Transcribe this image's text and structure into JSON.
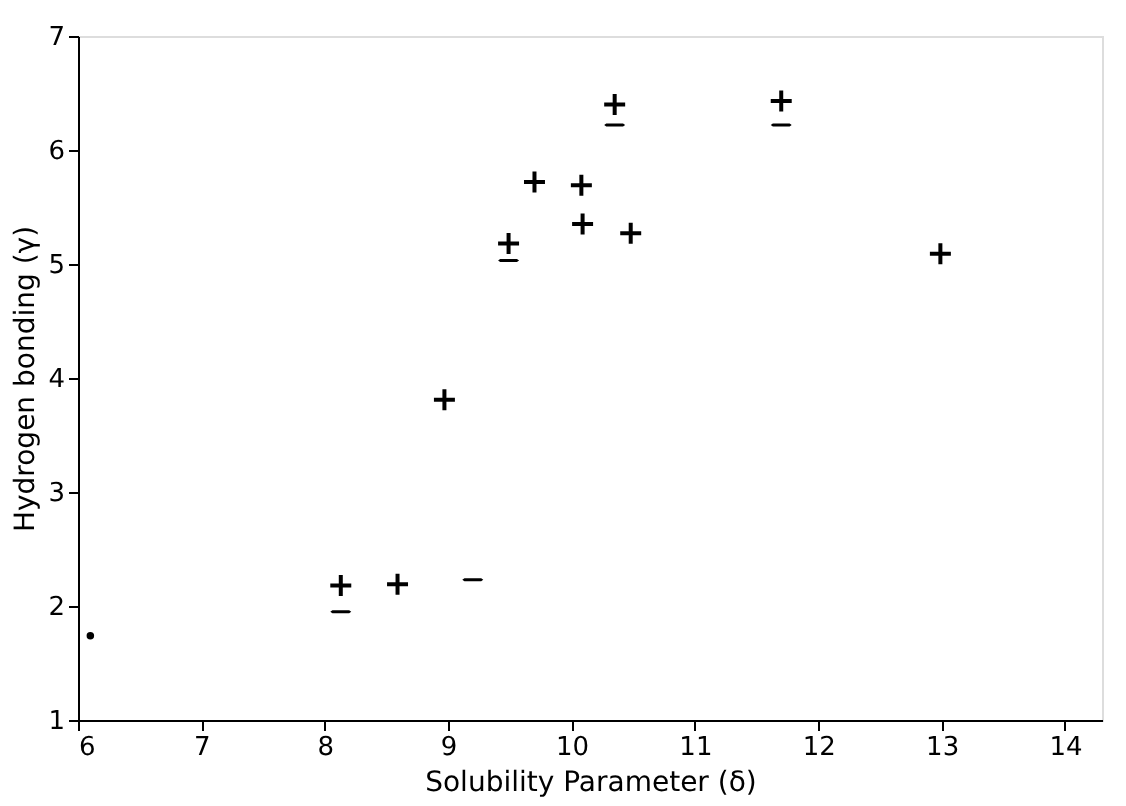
{
  "chart_data": {
    "type": "scatter",
    "xlabel": "Solubility Parameter (δ)",
    "ylabel": "Hydrogen bonding (γ)",
    "xlim": [
      6,
      14.3
    ],
    "ylim": [
      1,
      7
    ],
    "xticks": [
      6,
      7,
      8,
      9,
      10,
      11,
      12,
      13,
      14
    ],
    "yticks": [
      1,
      2,
      3,
      4,
      5,
      6,
      7
    ],
    "grid": false,
    "series": [
      {
        "color": "#000000",
        "marker": "cross",
        "x": [
          8.13,
          8.59,
          8.97,
          9.49,
          9.7,
          10.08,
          10.09,
          10.48,
          10.35,
          11.7,
          12.99
        ],
        "values": [
          2.18,
          2.19,
          3.81,
          5.18,
          5.72,
          5.69,
          5.35,
          5.27,
          6.4,
          6.43,
          5.09
        ]
      },
      {
        "color": "#000000",
        "x": [
          8.13,
          9.2,
          9.49,
          10.35,
          11.7
        ],
        "values": [
          1.95,
          2.23,
          5.03,
          6.22,
          6.22
        ]
      },
      {
        "color": "#000000",
        "marker": "circle",
        "x": [
          6.1
        ],
        "values": [
          1.74
        ]
      }
    ]
  }
}
